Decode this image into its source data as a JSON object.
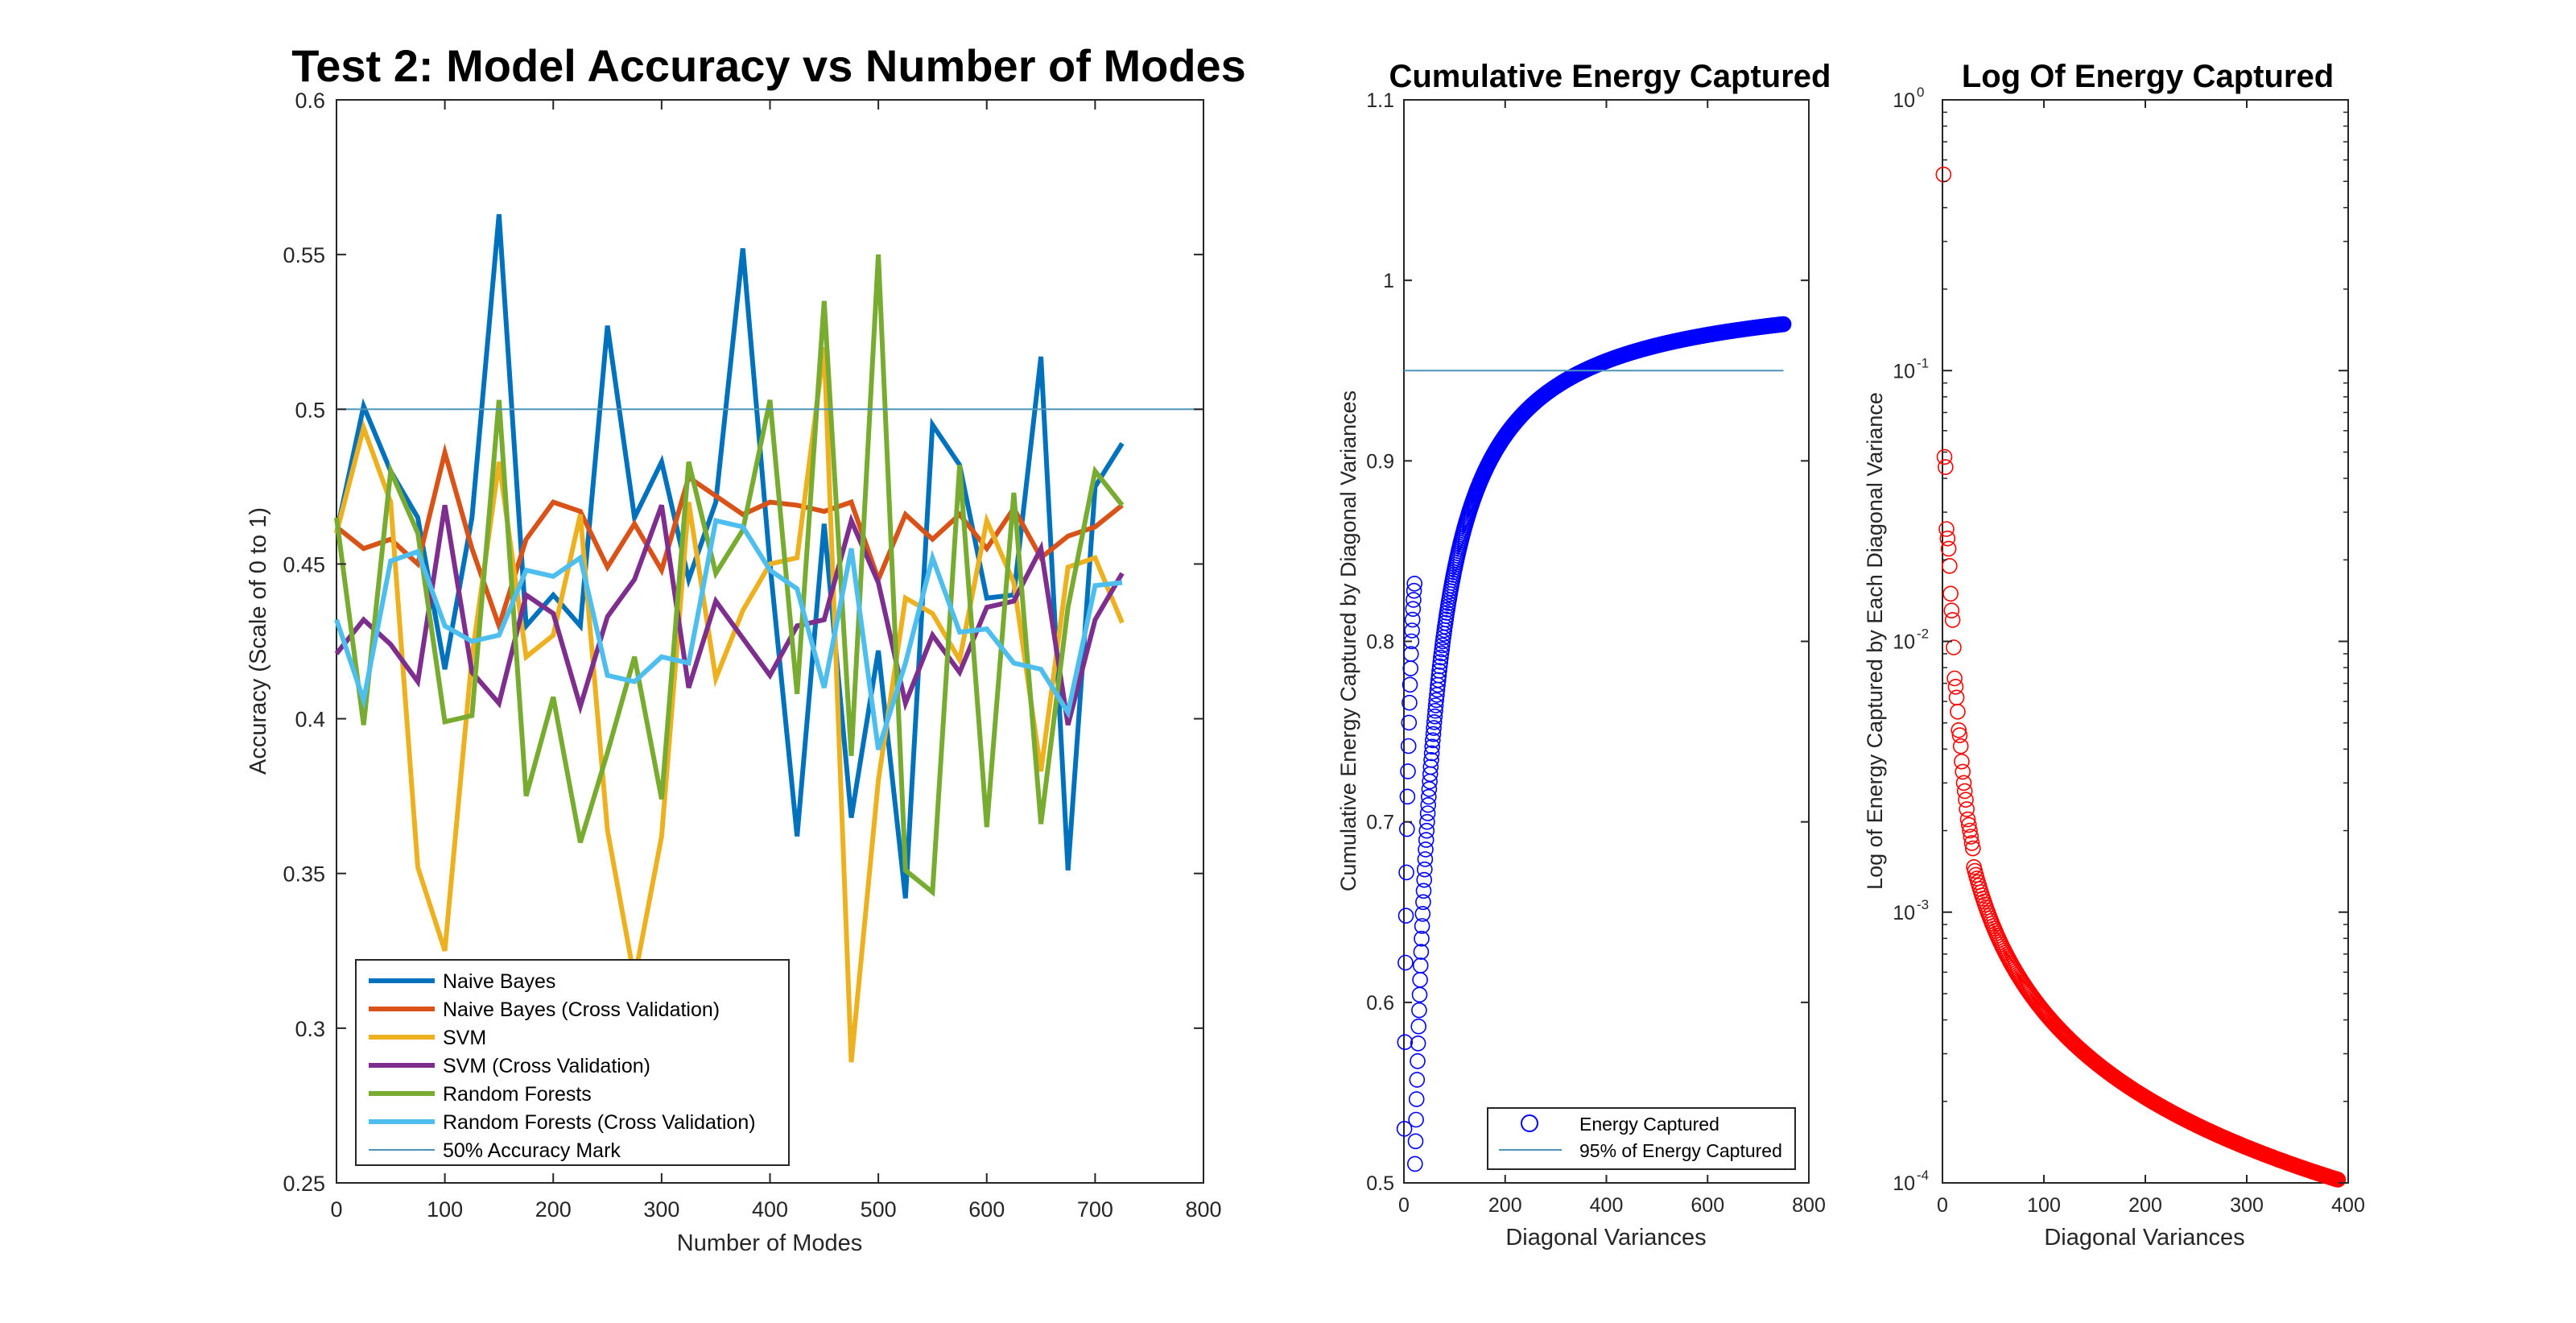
{
  "chart_data": [
    {
      "type": "line",
      "title": "Test 2: Model Accuracy vs Number of Modes",
      "xlabel": "Number of Modes",
      "ylabel": "Accuracy (Scale of 0 to 1)",
      "xlim": [
        0,
        800
      ],
      "ylim": [
        0.25,
        0.6
      ],
      "xticks": [
        0,
        100,
        200,
        300,
        400,
        500,
        600,
        700,
        800
      ],
      "xtick_labels": [
        "0",
        "100",
        "200",
        "300",
        "400",
        "500",
        "600",
        "700",
        "800"
      ],
      "yticks": [
        0.25,
        0.3,
        0.35,
        0.4,
        0.45,
        0.5,
        0.55,
        0.6
      ],
      "ytick_labels": [
        "0.25",
        "0.3",
        "0.35",
        "0.4",
        "0.45",
        "0.5",
        "0.55",
        "0.6"
      ],
      "grid": false,
      "legend_position": "bottom-left",
      "x": [
        0,
        25,
        50,
        75,
        100,
        125,
        150,
        175,
        200,
        225,
        250,
        275,
        300,
        325,
        350,
        375,
        400,
        425,
        450,
        475,
        500,
        525,
        550,
        575,
        600,
        625,
        650,
        675,
        700,
        725
      ],
      "series": [
        {
          "name": "Naive Bayes",
          "color": "#0072BD",
          "values": [
            0.46,
            0.501,
            0.48,
            0.465,
            0.416,
            0.465,
            0.563,
            0.43,
            0.44,
            0.43,
            0.527,
            0.465,
            0.483,
            0.445,
            0.47,
            0.552,
            0.45,
            0.362,
            0.463,
            0.368,
            0.422,
            0.342,
            0.495,
            0.482,
            0.439,
            0.44,
            0.517,
            0.351,
            0.475,
            0.489
          ]
        },
        {
          "name": "Naive Bayes (Cross Validation)",
          "color": "#D95319",
          "values": [
            0.462,
            0.455,
            0.458,
            0.45,
            0.486,
            0.455,
            0.43,
            0.458,
            0.47,
            0.467,
            0.449,
            0.463,
            0.448,
            0.478,
            0.472,
            0.466,
            0.47,
            0.469,
            0.467,
            0.47,
            0.445,
            0.466,
            0.458,
            0.466,
            0.455,
            0.468,
            0.452,
            0.459,
            0.462,
            0.469
          ]
        },
        {
          "name": "SVM",
          "color": "#EDB120",
          "values": [
            0.46,
            0.494,
            0.47,
            0.352,
            0.325,
            0.42,
            0.483,
            0.42,
            0.427,
            0.466,
            0.364,
            0.316,
            0.362,
            0.47,
            0.413,
            0.435,
            0.45,
            0.452,
            0.52,
            0.289,
            0.38,
            0.439,
            0.434,
            0.419,
            0.464,
            0.444,
            0.383,
            0.449,
            0.452,
            0.431
          ]
        },
        {
          "name": "SVM (Cross Validation)",
          "color": "#7E2F8E",
          "values": [
            0.421,
            0.432,
            0.424,
            0.412,
            0.469,
            0.415,
            0.405,
            0.44,
            0.434,
            0.404,
            0.433,
            0.445,
            0.469,
            0.41,
            0.438,
            0.426,
            0.414,
            0.43,
            0.432,
            0.464,
            0.444,
            0.405,
            0.427,
            0.415,
            0.436,
            0.438,
            0.455,
            0.398,
            0.432,
            0.447
          ]
        },
        {
          "name": "Random Forests",
          "color": "#77AC30",
          "values": [
            0.465,
            0.398,
            0.48,
            0.46,
            0.399,
            0.401,
            0.503,
            0.375,
            0.407,
            0.36,
            0.389,
            0.42,
            0.374,
            0.483,
            0.447,
            0.461,
            0.503,
            0.408,
            0.535,
            0.388,
            0.55,
            0.351,
            0.344,
            0.482,
            0.365,
            0.473,
            0.366,
            0.436,
            0.48,
            0.469
          ]
        },
        {
          "name": "Random Forests (Cross Validation)",
          "color": "#4DBEEE",
          "values": [
            0.432,
            0.406,
            0.451,
            0.454,
            0.43,
            0.425,
            0.427,
            0.448,
            0.446,
            0.452,
            0.414,
            0.412,
            0.42,
            0.418,
            0.464,
            0.462,
            0.448,
            0.442,
            0.41,
            0.455,
            0.39,
            0.418,
            0.452,
            0.428,
            0.429,
            0.418,
            0.416,
            0.402,
            0.443,
            0.444
          ]
        },
        {
          "name": "50% Accuracy Mark",
          "color": "#4F95B8",
          "hline": 0.5
        }
      ]
    },
    {
      "type": "scatter",
      "title": "Cumulative Energy Captured",
      "xlabel": "Diagonal Variances",
      "ylabel": "Cumulative Energy Captured by Diagonal Variances",
      "xlim": [
        0,
        800
      ],
      "ylim": [
        0.5,
        1.1
      ],
      "xticks": [
        0,
        200,
        400,
        600,
        800
      ],
      "xtick_labels": [
        "0",
        "200",
        "400",
        "600",
        "800"
      ],
      "yticks": [
        0.5,
        0.6,
        0.7,
        0.8,
        0.9,
        1.0,
        1.1
      ],
      "ytick_labels": [
        "0.5",
        "0.6",
        "0.7",
        "0.8",
        "0.9",
        "1",
        "1.1"
      ],
      "grid": false,
      "legend_position": "bottom-right",
      "x_range": [
        1,
        750
      ],
      "early_values": [
        0.53,
        0.578,
        0.622,
        0.648,
        0.672,
        0.696,
        0.714,
        0.728,
        0.742,
        0.755,
        0.766,
        0.776,
        0.785,
        0.793,
        0.8,
        0.806,
        0.812,
        0.818,
        0.823,
        0.828,
        0.832
      ],
      "curve_model": {
        "form": "1 - a / (n + c)",
        "a": 18.6,
        "c": 16
      },
      "series": [
        {
          "name": "Energy Captured",
          "color": "#0000FF",
          "marker": "circle"
        },
        {
          "name": "95% of Energy Captured",
          "color": "#4F95B8",
          "hline": 0.95,
          "x_end": 750
        }
      ]
    },
    {
      "type": "scatter",
      "title": "Log Of Energy Captured",
      "xlabel": "Diagonal Variances",
      "ylabel": "Log of Energy Captured by Each Diagonal Variance",
      "xlim": [
        0,
        400
      ],
      "ylim": [
        0.0001,
        1
      ],
      "yscale": "log",
      "xticks": [
        0,
        100,
        200,
        300,
        400
      ],
      "xtick_labels": [
        "0",
        "100",
        "200",
        "300",
        "400"
      ],
      "yticks": [
        0.0001,
        0.001,
        0.01,
        0.1,
        1
      ],
      "ytick_labels": [
        [
          "10",
          "-4"
        ],
        [
          "10",
          "-3"
        ],
        [
          "10",
          "-2"
        ],
        [
          "10",
          "-1"
        ],
        [
          "10",
          "0"
        ]
      ],
      "grid": false,
      "x_range": [
        1,
        390
      ],
      "early_values": [
        0.53,
        0.048,
        0.044,
        0.026,
        0.024,
        0.022,
        0.019,
        0.015,
        0.013,
        0.012,
        0.0095,
        0.0073,
        0.0068,
        0.0062,
        0.0055,
        0.0047,
        0.0045,
        0.0041,
        0.0036,
        0.0033,
        0.003,
        0.0028,
        0.0026,
        0.0024,
        0.0022,
        0.0021,
        0.002,
        0.0019,
        0.0018,
        0.00172
      ],
      "curve_model": {
        "form": "a * n ^ -b",
        "a": 0.054,
        "b": 1.05
      },
      "series": [
        {
          "name": "",
          "color": "#FF0000",
          "marker": "circle"
        }
      ]
    }
  ]
}
